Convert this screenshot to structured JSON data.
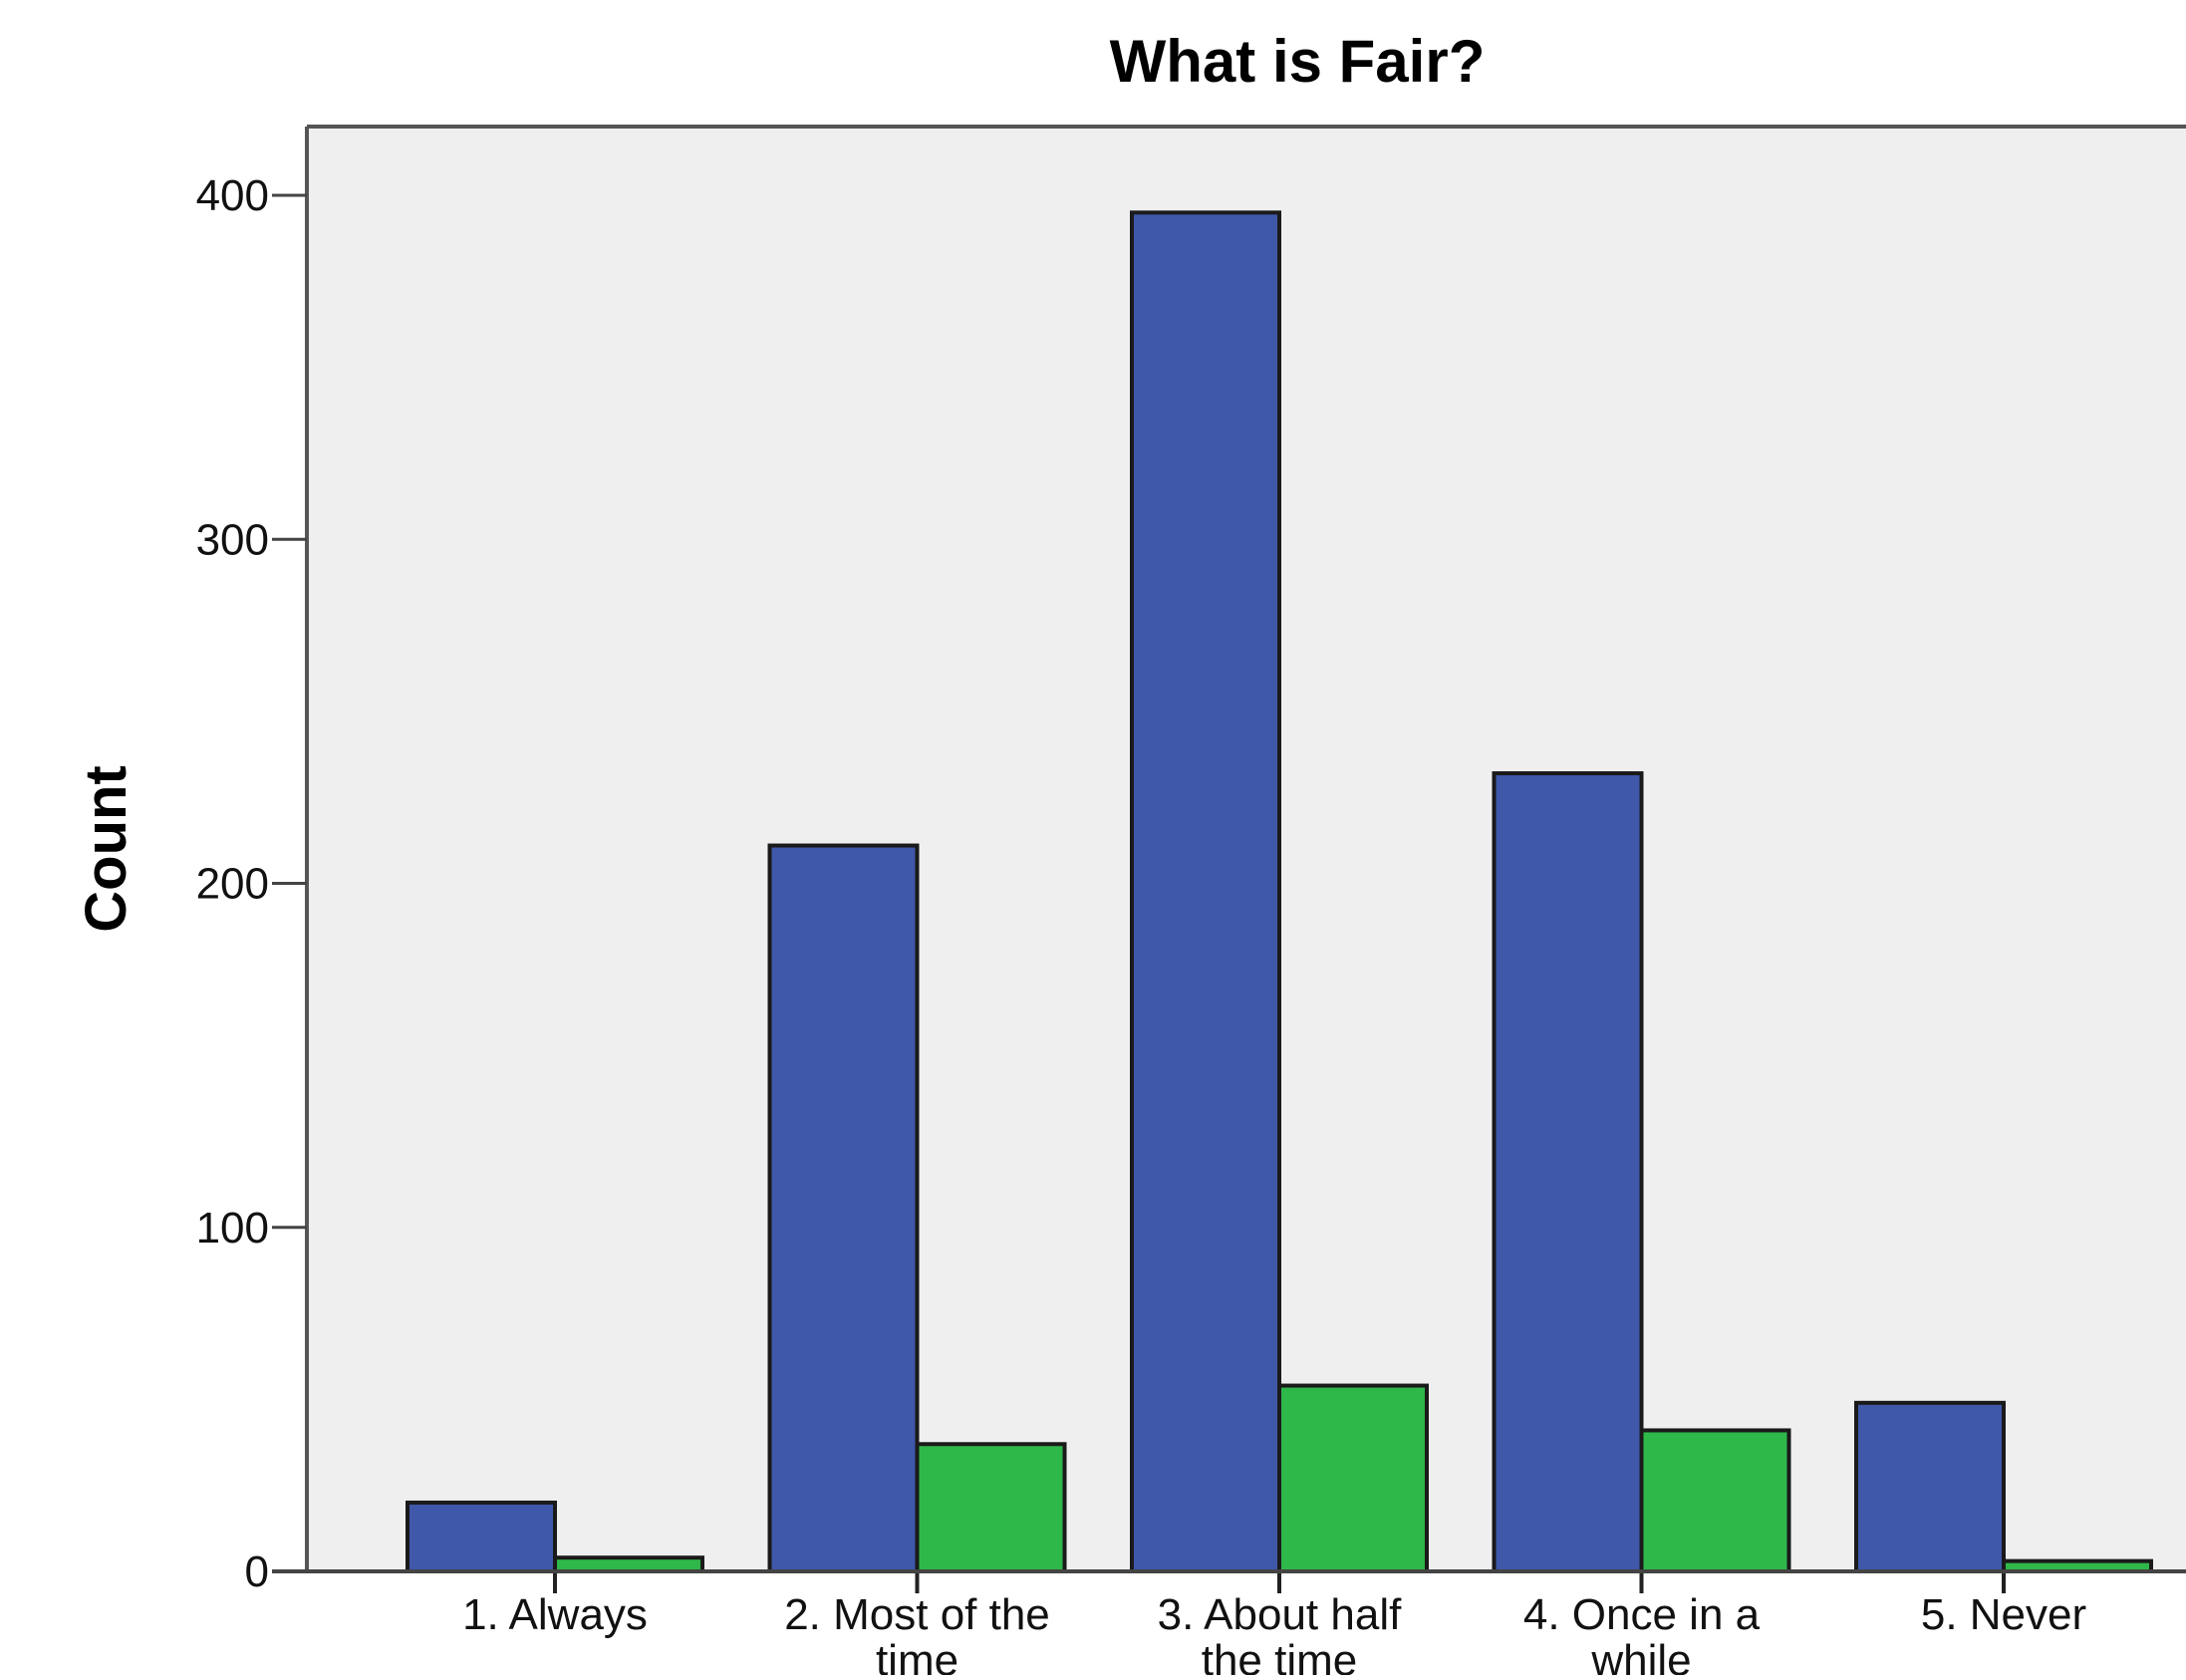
{
  "chart_data": {
    "type": "bar",
    "title": "What is Fair?",
    "xlabel": "",
    "ylabel": "Count",
    "categories": [
      [
        "1. Always"
      ],
      [
        "2. Most of the",
        "time"
      ],
      [
        "3. About half",
        "the time"
      ],
      [
        "4. Once in a",
        "while"
      ],
      [
        "5. Never"
      ]
    ],
    "series": [
      {
        "color": "#3f58a9",
        "values": [
          20,
          211,
          395,
          232,
          49
        ]
      },
      {
        "color": "#2fb84a",
        "values": [
          4,
          37,
          54,
          41,
          3
        ]
      }
    ],
    "ylim": [
      0,
      420
    ],
    "yticks": [
      0,
      100,
      200,
      300,
      400
    ],
    "grid": false,
    "legend": "none",
    "plot_background": "#efefef"
  }
}
